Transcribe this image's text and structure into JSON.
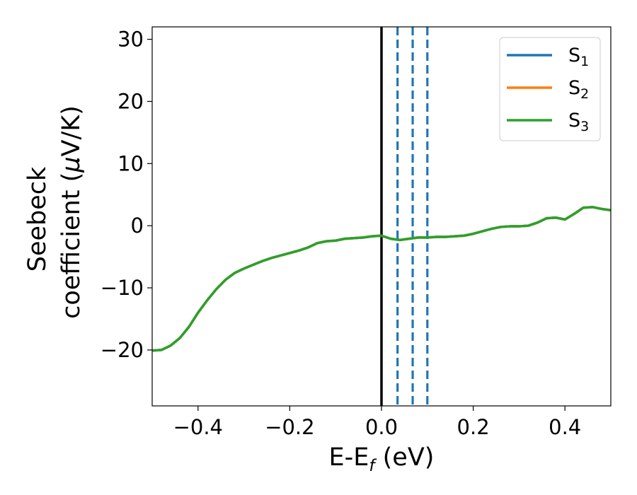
{
  "chart_data": {
    "type": "line",
    "title": "",
    "xlabel": "E-E",
    "xlabel_sub": "f",
    "xlabel_suffix": " (eV)",
    "ylabel_line1": "Seebeck",
    "ylabel_line2_prefix": "coefficient  (",
    "ylabel_mu": "μ",
    "ylabel_line2_suffix": "V/K)",
    "xlim": [
      -0.5,
      0.5
    ],
    "ylim": [
      -29,
      32
    ],
    "xticks": [
      -0.4,
      -0.2,
      0.0,
      0.2,
      0.4
    ],
    "xtick_labels": [
      "−0.4",
      "−0.2",
      "0.0",
      "0.2",
      "0.4"
    ],
    "yticks": [
      -20,
      -10,
      0,
      10,
      20,
      30
    ],
    "ytick_labels": [
      "−20",
      "−10",
      "0",
      "10",
      "20",
      "30"
    ],
    "grid": false,
    "legend_position": "top-right",
    "series": [
      {
        "name_base": "S",
        "name_sub": "1",
        "color": "#1f77b4",
        "x": [
          -0.5,
          -0.48,
          -0.46,
          -0.44,
          -0.42,
          -0.4,
          -0.38,
          -0.36,
          -0.34,
          -0.32,
          -0.3,
          -0.28,
          -0.26,
          -0.24,
          -0.22,
          -0.2,
          -0.18,
          -0.16,
          -0.14,
          -0.12,
          -0.1,
          -0.08,
          -0.06,
          -0.04,
          -0.02,
          0.0,
          0.02,
          0.04,
          0.06,
          0.08,
          0.1,
          0.12,
          0.14,
          0.16,
          0.18,
          0.2,
          0.22,
          0.24,
          0.26,
          0.28,
          0.3,
          0.32,
          0.34,
          0.36,
          0.38,
          0.4,
          0.42,
          0.44,
          0.46,
          0.48,
          0.5
        ],
        "y": [
          -20.1,
          -20.0,
          -19.3,
          -18.1,
          -16.3,
          -14.0,
          -12.0,
          -10.2,
          -8.7,
          -7.6,
          -6.9,
          -6.3,
          -5.7,
          -5.2,
          -4.8,
          -4.4,
          -4.0,
          -3.5,
          -2.8,
          -2.5,
          -2.4,
          -2.1,
          -2.0,
          -1.9,
          -1.7,
          -1.6,
          -2.1,
          -2.3,
          -2.1,
          -1.9,
          -1.9,
          -1.8,
          -1.8,
          -1.7,
          -1.6,
          -1.3,
          -0.9,
          -0.5,
          -0.2,
          -0.1,
          -0.1,
          0.0,
          0.5,
          1.2,
          1.3,
          1.0,
          1.9,
          2.9,
          3.0,
          2.7,
          2.5
        ]
      },
      {
        "name_base": "S",
        "name_sub": "2",
        "color": "#ff7f0e",
        "x": [
          -0.5,
          -0.48,
          -0.46,
          -0.44,
          -0.42,
          -0.4,
          -0.38,
          -0.36,
          -0.34,
          -0.32,
          -0.3,
          -0.28,
          -0.26,
          -0.24,
          -0.22,
          -0.2,
          -0.18,
          -0.16,
          -0.14,
          -0.12,
          -0.1,
          -0.08,
          -0.06,
          -0.04,
          -0.02,
          0.0,
          0.02,
          0.04,
          0.06,
          0.08,
          0.1,
          0.12,
          0.14,
          0.16,
          0.18,
          0.2,
          0.22,
          0.24,
          0.26,
          0.28,
          0.3,
          0.32,
          0.34,
          0.36,
          0.38,
          0.4,
          0.42,
          0.44,
          0.46,
          0.48,
          0.5
        ],
        "y": [
          -20.1,
          -20.0,
          -19.3,
          -18.1,
          -16.3,
          -14.0,
          -12.0,
          -10.2,
          -8.7,
          -7.6,
          -6.9,
          -6.3,
          -5.7,
          -5.2,
          -4.8,
          -4.4,
          -4.0,
          -3.5,
          -2.8,
          -2.5,
          -2.4,
          -2.1,
          -2.0,
          -1.9,
          -1.7,
          -1.6,
          -2.1,
          -2.3,
          -2.1,
          -1.9,
          -1.9,
          -1.8,
          -1.8,
          -1.7,
          -1.6,
          -1.3,
          -0.9,
          -0.5,
          -0.2,
          -0.1,
          -0.1,
          0.0,
          0.5,
          1.2,
          1.3,
          1.0,
          1.9,
          2.9,
          3.0,
          2.7,
          2.5
        ]
      },
      {
        "name_base": "S",
        "name_sub": "3",
        "color": "#2ca02c",
        "x": [
          -0.5,
          -0.48,
          -0.46,
          -0.44,
          -0.42,
          -0.4,
          -0.38,
          -0.36,
          -0.34,
          -0.32,
          -0.3,
          -0.28,
          -0.26,
          -0.24,
          -0.22,
          -0.2,
          -0.18,
          -0.16,
          -0.14,
          -0.12,
          -0.1,
          -0.08,
          -0.06,
          -0.04,
          -0.02,
          0.0,
          0.02,
          0.04,
          0.06,
          0.08,
          0.1,
          0.12,
          0.14,
          0.16,
          0.18,
          0.2,
          0.22,
          0.24,
          0.26,
          0.28,
          0.3,
          0.32,
          0.34,
          0.36,
          0.38,
          0.4,
          0.42,
          0.44,
          0.46,
          0.48,
          0.5
        ],
        "y": [
          -20.1,
          -20.0,
          -19.3,
          -18.1,
          -16.3,
          -14.0,
          -12.0,
          -10.2,
          -8.7,
          -7.6,
          -6.9,
          -6.3,
          -5.7,
          -5.2,
          -4.8,
          -4.4,
          -4.0,
          -3.5,
          -2.8,
          -2.5,
          -2.4,
          -2.1,
          -2.0,
          -1.9,
          -1.7,
          -1.6,
          -2.1,
          -2.3,
          -2.1,
          -1.9,
          -1.9,
          -1.8,
          -1.8,
          -1.7,
          -1.6,
          -1.3,
          -0.9,
          -0.5,
          -0.2,
          -0.1,
          -0.1,
          0.0,
          0.5,
          1.2,
          1.3,
          1.0,
          1.9,
          2.9,
          3.0,
          2.7,
          2.5
        ]
      }
    ],
    "vertical_lines": [
      {
        "x": 0.0,
        "style": "solid",
        "color": "#000000"
      },
      {
        "x": 0.035,
        "style": "dashed",
        "color": "#1f77b4"
      },
      {
        "x": 0.068,
        "style": "dashed",
        "color": "#1f77b4"
      },
      {
        "x": 0.1,
        "style": "dashed",
        "color": "#1f77b4"
      }
    ]
  }
}
